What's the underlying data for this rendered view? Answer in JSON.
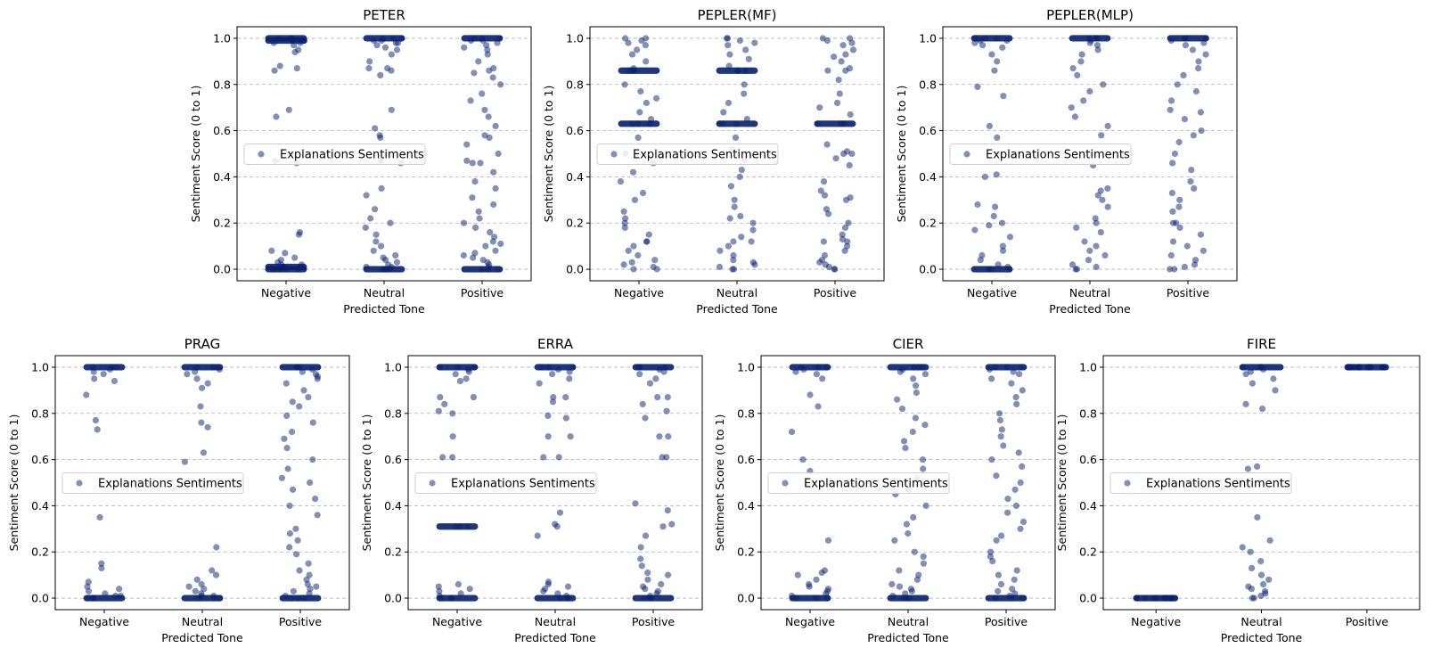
{
  "figure": {
    "description_marker": "strip plot",
    "point_color": "#08206e"
  },
  "chart_data": [
    {
      "type": "scatter",
      "title": "PETER",
      "xlabel": "Predicted Tone",
      "ylabel": "Sentiment Score (0 to 1)",
      "categories": [
        "Negative",
        "Neutral",
        "Positive"
      ],
      "ylim": [
        -0.05,
        1.05
      ],
      "yticks": [
        "0.0",
        "0.2",
        "0.4",
        "0.6",
        "0.8",
        "1.0"
      ],
      "grid": true,
      "legend": {
        "label": "Explanations Sentiments",
        "loc": "center-left"
      },
      "series": [
        {
          "name": "Negative",
          "values": [
            1.0,
            1.0,
            1.0,
            0.99,
            0.99,
            0.99,
            0.98,
            0.98,
            0.97,
            0.95,
            0.94,
            0.88,
            0.87,
            0.86,
            0.69,
            0.66,
            0.47,
            0.46,
            0.16,
            0.15,
            0.08,
            0.07,
            0.05,
            0.04,
            0.03,
            0.02,
            0.02,
            0.01,
            0.01,
            0.01,
            0.0,
            0.0,
            0.0,
            0.0,
            0.0,
            0.0
          ]
        },
        {
          "name": "Neutral",
          "values": [
            1.0,
            1.0,
            1.0,
            0.99,
            0.99,
            0.98,
            0.98,
            0.97,
            0.96,
            0.95,
            0.93,
            0.9,
            0.87,
            0.87,
            0.86,
            0.84,
            0.69,
            0.61,
            0.58,
            0.57,
            0.47,
            0.46,
            0.35,
            0.32,
            0.26,
            0.22,
            0.2,
            0.18,
            0.15,
            0.12,
            0.1,
            0.08,
            0.06,
            0.05,
            0.04,
            0.03,
            0.02,
            0.01,
            0.01,
            0.0,
            0.0,
            0.0,
            0.0
          ]
        },
        {
          "name": "Positive",
          "values": [
            1.0,
            1.0,
            1.0,
            0.99,
            0.99,
            0.98,
            0.97,
            0.96,
            0.95,
            0.93,
            0.9,
            0.87,
            0.86,
            0.85,
            0.83,
            0.8,
            0.76,
            0.73,
            0.69,
            0.66,
            0.62,
            0.58,
            0.57,
            0.54,
            0.5,
            0.47,
            0.46,
            0.46,
            0.42,
            0.38,
            0.35,
            0.31,
            0.28,
            0.25,
            0.22,
            0.2,
            0.18,
            0.16,
            0.14,
            0.12,
            0.11,
            0.1,
            0.08,
            0.07,
            0.06,
            0.05,
            0.04,
            0.03,
            0.02,
            0.01,
            0.0,
            0.0,
            0.0
          ]
        }
      ]
    },
    {
      "type": "scatter",
      "title": "PEPLER(MF)",
      "xlabel": "Predicted Tone",
      "ylabel": "Sentiment Score (0 to 1)",
      "categories": [
        "Negative",
        "Neutral",
        "Positive"
      ],
      "ylim": [
        -0.05,
        1.05
      ],
      "yticks": [
        "0.0",
        "0.2",
        "0.4",
        "0.6",
        "0.8",
        "1.0"
      ],
      "grid": true,
      "legend": {
        "label": "Explanations Sentiments",
        "loc": "center-left"
      },
      "series": [
        {
          "name": "Negative",
          "values": [
            1.0,
            1.0,
            0.99,
            0.98,
            0.97,
            0.95,
            0.93,
            0.9,
            0.87,
            0.86,
            0.86,
            0.86,
            0.8,
            0.77,
            0.74,
            0.72,
            0.68,
            0.65,
            0.63,
            0.63,
            0.63,
            0.57,
            0.5,
            0.46,
            0.42,
            0.38,
            0.33,
            0.3,
            0.25,
            0.22,
            0.2,
            0.18,
            0.15,
            0.12,
            0.12,
            0.1,
            0.08,
            0.06,
            0.04,
            0.03,
            0.02,
            0.01,
            0.0,
            0.0
          ]
        },
        {
          "name": "Neutral",
          "values": [
            1.0,
            1.0,
            0.99,
            0.98,
            0.97,
            0.95,
            0.93,
            0.91,
            0.88,
            0.86,
            0.86,
            0.86,
            0.8,
            0.76,
            0.72,
            0.68,
            0.65,
            0.63,
            0.63,
            0.63,
            0.57,
            0.52,
            0.47,
            0.43,
            0.4,
            0.36,
            0.3,
            0.27,
            0.23,
            0.22,
            0.2,
            0.17,
            0.14,
            0.12,
            0.12,
            0.1,
            0.08,
            0.06,
            0.04,
            0.03,
            0.02,
            0.01,
            0.0,
            0.0
          ]
        },
        {
          "name": "Positive",
          "values": [
            1.0,
            1.0,
            0.99,
            0.98,
            0.97,
            0.95,
            0.93,
            0.92,
            0.9,
            0.87,
            0.86,
            0.86,
            0.82,
            0.76,
            0.72,
            0.7,
            0.67,
            0.63,
            0.63,
            0.63,
            0.54,
            0.51,
            0.5,
            0.5,
            0.48,
            0.45,
            0.38,
            0.34,
            0.32,
            0.31,
            0.3,
            0.26,
            0.24,
            0.2,
            0.18,
            0.15,
            0.13,
            0.12,
            0.12,
            0.1,
            0.08,
            0.06,
            0.04,
            0.03,
            0.02,
            0.01,
            0.0,
            0.0
          ]
        }
      ]
    },
    {
      "type": "scatter",
      "title": "PEPLER(MLP)",
      "xlabel": "Predicted Tone",
      "ylabel": "Sentiment Score (0 to 1)",
      "categories": [
        "Negative",
        "Neutral",
        "Positive"
      ],
      "ylim": [
        -0.05,
        1.05
      ],
      "yticks": [
        "0.0",
        "0.2",
        "0.4",
        "0.6",
        "0.8",
        "1.0"
      ],
      "grid": true,
      "legend": {
        "label": "Explanations Sentiments",
        "loc": "center-left"
      },
      "series": [
        {
          "name": "Negative",
          "values": [
            1.0,
            1.0,
            1.0,
            0.99,
            0.99,
            0.98,
            0.97,
            0.96,
            0.93,
            0.9,
            0.86,
            0.79,
            0.75,
            0.62,
            0.57,
            0.41,
            0.4,
            0.28,
            0.27,
            0.23,
            0.2,
            0.19,
            0.17,
            0.14,
            0.1,
            0.08,
            0.06,
            0.04,
            0.02,
            0.01,
            0.0,
            0.0,
            0.0
          ]
        },
        {
          "name": "Neutral",
          "values": [
            1.0,
            1.0,
            1.0,
            0.99,
            0.98,
            0.97,
            0.95,
            0.93,
            0.9,
            0.87,
            0.84,
            0.8,
            0.77,
            0.73,
            0.7,
            0.66,
            0.62,
            0.58,
            0.45,
            0.35,
            0.34,
            0.32,
            0.3,
            0.27,
            0.22,
            0.2,
            0.18,
            0.16,
            0.12,
            0.1,
            0.08,
            0.06,
            0.04,
            0.02,
            0.01,
            0.0,
            0.0
          ]
        },
        {
          "name": "Positive",
          "values": [
            1.0,
            1.0,
            1.0,
            0.99,
            0.98,
            0.97,
            0.95,
            0.93,
            0.9,
            0.87,
            0.84,
            0.8,
            0.77,
            0.73,
            0.69,
            0.68,
            0.65,
            0.6,
            0.58,
            0.55,
            0.5,
            0.46,
            0.43,
            0.38,
            0.35,
            0.33,
            0.3,
            0.27,
            0.25,
            0.2,
            0.2,
            0.18,
            0.15,
            0.12,
            0.1,
            0.08,
            0.06,
            0.04,
            0.02,
            0.01,
            0.0,
            0.0
          ]
        }
      ]
    },
    {
      "type": "scatter",
      "title": "PRAG",
      "xlabel": "Predicted Tone",
      "ylabel": "Sentiment Score (0 to 1)",
      "categories": [
        "Negative",
        "Neutral",
        "Positive"
      ],
      "ylim": [
        -0.05,
        1.05
      ],
      "yticks": [
        "0.0",
        "0.2",
        "0.4",
        "0.6",
        "0.8",
        "1.0"
      ],
      "grid": true,
      "legend": {
        "label": "Explanations Sentiments",
        "loc": "center-left"
      },
      "series": [
        {
          "name": "Negative",
          "values": [
            1.0,
            1.0,
            1.0,
            0.99,
            0.98,
            0.97,
            0.95,
            0.94,
            0.88,
            0.77,
            0.73,
            0.35,
            0.15,
            0.13,
            0.07,
            0.05,
            0.04,
            0.03,
            0.02,
            0.01,
            0.01,
            0.0,
            0.0,
            0.0
          ]
        },
        {
          "name": "Neutral",
          "values": [
            1.0,
            1.0,
            1.0,
            0.99,
            0.98,
            0.97,
            0.95,
            0.93,
            0.91,
            0.83,
            0.76,
            0.74,
            0.63,
            0.59,
            0.48,
            0.22,
            0.12,
            0.1,
            0.08,
            0.06,
            0.05,
            0.04,
            0.03,
            0.02,
            0.01,
            0.01,
            0.0,
            0.0,
            0.0
          ]
        },
        {
          "name": "Positive",
          "values": [
            1.0,
            1.0,
            1.0,
            0.99,
            0.98,
            0.97,
            0.96,
            0.95,
            0.93,
            0.9,
            0.87,
            0.85,
            0.83,
            0.79,
            0.76,
            0.72,
            0.69,
            0.65,
            0.6,
            0.56,
            0.52,
            0.5,
            0.47,
            0.43,
            0.4,
            0.36,
            0.3,
            0.28,
            0.25,
            0.22,
            0.19,
            0.15,
            0.12,
            0.1,
            0.08,
            0.06,
            0.05,
            0.04,
            0.03,
            0.02,
            0.01,
            0.0,
            0.0,
            0.0
          ]
        }
      ]
    },
    {
      "type": "scatter",
      "title": "ERRA",
      "xlabel": "Predicted Tone",
      "ylabel": "Sentiment Score (0 to 1)",
      "categories": [
        "Negative",
        "Neutral",
        "Positive"
      ],
      "ylim": [
        -0.05,
        1.05
      ],
      "yticks": [
        "0.0",
        "0.2",
        "0.4",
        "0.6",
        "0.8",
        "1.0"
      ],
      "grid": true,
      "legend": {
        "label": "Explanations Sentiments",
        "loc": "center-left"
      },
      "series": [
        {
          "name": "Negative",
          "values": [
            1.0,
            1.0,
            1.0,
            0.99,
            0.98,
            0.97,
            0.95,
            0.94,
            0.87,
            0.87,
            0.84,
            0.81,
            0.8,
            0.7,
            0.61,
            0.61,
            0.31,
            0.31,
            0.31,
            0.06,
            0.05,
            0.04,
            0.03,
            0.02,
            0.01,
            0.0,
            0.0,
            0.0
          ]
        },
        {
          "name": "Neutral",
          "values": [
            1.0,
            1.0,
            1.0,
            0.99,
            0.98,
            0.97,
            0.95,
            0.93,
            0.87,
            0.87,
            0.85,
            0.79,
            0.78,
            0.7,
            0.7,
            0.61,
            0.61,
            0.37,
            0.32,
            0.31,
            0.27,
            0.07,
            0.06,
            0.05,
            0.04,
            0.03,
            0.02,
            0.01,
            0.0,
            0.0,
            0.0
          ]
        },
        {
          "name": "Positive",
          "values": [
            1.0,
            1.0,
            1.0,
            0.99,
            0.98,
            0.97,
            0.95,
            0.93,
            0.87,
            0.87,
            0.84,
            0.81,
            0.78,
            0.7,
            0.7,
            0.61,
            0.61,
            0.41,
            0.38,
            0.32,
            0.31,
            0.27,
            0.22,
            0.17,
            0.14,
            0.11,
            0.1,
            0.08,
            0.06,
            0.05,
            0.04,
            0.03,
            0.02,
            0.01,
            0.0,
            0.0,
            0.0
          ]
        }
      ]
    },
    {
      "type": "scatter",
      "title": "CIER",
      "xlabel": "Predicted Tone",
      "ylabel": "Sentiment Score (0 to 1)",
      "categories": [
        "Negative",
        "Neutral",
        "Positive"
      ],
      "ylim": [
        -0.05,
        1.05
      ],
      "yticks": [
        "0.0",
        "0.2",
        "0.4",
        "0.6",
        "0.8",
        "1.0"
      ],
      "grid": true,
      "legend": {
        "label": "Explanations Sentiments",
        "loc": "center-left"
      },
      "series": [
        {
          "name": "Negative",
          "values": [
            1.0,
            1.0,
            1.0,
            0.99,
            0.98,
            0.97,
            0.95,
            0.88,
            0.83,
            0.72,
            0.6,
            0.55,
            0.25,
            0.12,
            0.11,
            0.1,
            0.08,
            0.06,
            0.05,
            0.04,
            0.03,
            0.02,
            0.01,
            0.0,
            0.0,
            0.0
          ]
        },
        {
          "name": "Neutral",
          "values": [
            1.0,
            1.0,
            1.0,
            0.99,
            0.98,
            0.97,
            0.95,
            0.92,
            0.89,
            0.86,
            0.82,
            0.78,
            0.75,
            0.72,
            0.68,
            0.65,
            0.6,
            0.56,
            0.52,
            0.47,
            0.45,
            0.4,
            0.35,
            0.32,
            0.28,
            0.25,
            0.2,
            0.18,
            0.15,
            0.12,
            0.1,
            0.08,
            0.06,
            0.05,
            0.04,
            0.03,
            0.02,
            0.01,
            0.0,
            0.0,
            0.0
          ]
        },
        {
          "name": "Positive",
          "values": [
            1.0,
            1.0,
            1.0,
            0.99,
            0.98,
            0.97,
            0.95,
            0.93,
            0.9,
            0.87,
            0.84,
            0.8,
            0.77,
            0.73,
            0.7,
            0.66,
            0.63,
            0.6,
            0.57,
            0.53,
            0.5,
            0.47,
            0.43,
            0.4,
            0.37,
            0.33,
            0.3,
            0.27,
            0.25,
            0.2,
            0.18,
            0.16,
            0.12,
            0.1,
            0.08,
            0.06,
            0.04,
            0.03,
            0.02,
            0.01,
            0.0,
            0.0,
            0.0
          ]
        }
      ]
    },
    {
      "type": "scatter",
      "title": "FIRE",
      "xlabel": "Predicted Tone",
      "ylabel": "Sentiment Score (0 to 1)",
      "categories": [
        "Negative",
        "Neutral",
        "Positive"
      ],
      "ylim": [
        -0.05,
        1.05
      ],
      "yticks": [
        "0.0",
        "0.2",
        "0.4",
        "0.6",
        "0.8",
        "1.0"
      ],
      "grid": true,
      "legend": {
        "label": "Explanations Sentiments",
        "loc": "center-left"
      },
      "series": [
        {
          "name": "Negative",
          "values": [
            0.0,
            0.0,
            0.0,
            0.0,
            0.0,
            0.0,
            0.0,
            0.0,
            0.0,
            0.0,
            0.0,
            0.0,
            0.0,
            0.0,
            0.0,
            0.0,
            0.0,
            0.0
          ]
        },
        {
          "name": "Neutral",
          "values": [
            1.0,
            1.0,
            1.0,
            0.99,
            0.98,
            0.97,
            0.95,
            0.93,
            0.9,
            0.84,
            0.82,
            0.57,
            0.56,
            0.35,
            0.25,
            0.22,
            0.2,
            0.16,
            0.13,
            0.1,
            0.08,
            0.06,
            0.05,
            0.04,
            0.03,
            0.02,
            0.01,
            0.0,
            0.0
          ]
        },
        {
          "name": "Positive",
          "values": [
            1.0,
            1.0,
            1.0,
            1.0,
            1.0,
            1.0,
            1.0,
            1.0,
            1.0,
            1.0,
            1.0,
            1.0,
            1.0,
            1.0,
            1.0,
            1.0,
            1.0,
            1.0
          ]
        }
      ]
    }
  ]
}
